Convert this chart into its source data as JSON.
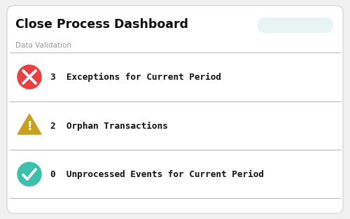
{
  "title": "Close Process Dashboard",
  "section_label": "Data Validation",
  "bg_color": "#ffffff",
  "outer_bg": "#f0f0f0",
  "border_color": "#d8d8d8",
  "title_color": "#111111",
  "section_label_color": "#999999",
  "divider_color": "#bbbbbb",
  "button_color": "#e8f4f2",
  "rows": [
    {
      "icon_type": "x_circle",
      "icon_color": "#e84040",
      "text": "3  Exceptions for Current Period",
      "text_color": "#111111"
    },
    {
      "icon_type": "warning_triangle",
      "icon_color": "#c8a020",
      "text": "2  Orphan Transactions",
      "text_color": "#111111"
    },
    {
      "icon_type": "check_circle",
      "icon_color": "#3dbfad",
      "text": "0  Unprocessed Events for Current Period",
      "text_color": "#111111"
    }
  ],
  "figsize": [
    5.0,
    3.13
  ],
  "dpi": 100
}
